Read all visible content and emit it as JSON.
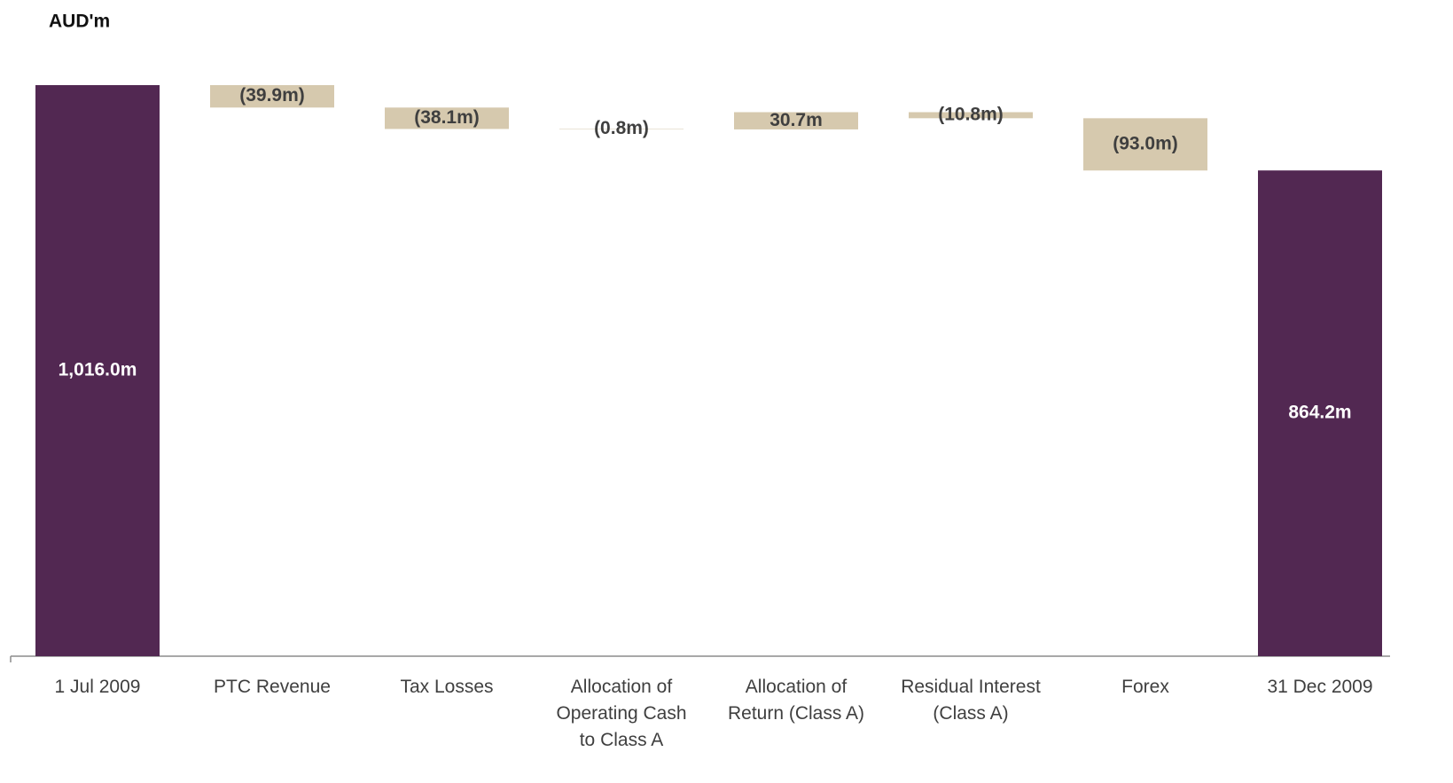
{
  "chart_data": {
    "type": "waterfall",
    "title": "AUD'm",
    "categories": [
      "1 Jul 2009",
      "PTC Revenue",
      "Tax Losses",
      "Allocation of\nOperating Cash\nto Class A",
      "Allocation of\nReturn (Class A)",
      "Residual Interest\n(Class A)",
      "Forex",
      "31 Dec 2009"
    ],
    "values": [
      1016.0,
      -39.9,
      -38.1,
      -0.8,
      30.7,
      -10.8,
      -93.0,
      864.2
    ],
    "value_labels": [
      "1,016.0m",
      "(39.9m)",
      "(38.1m)",
      "(0.8m)",
      "30.7m",
      "(10.8m)",
      "(93.0m)",
      "864.2m"
    ],
    "is_total": [
      true,
      false,
      false,
      false,
      false,
      false,
      false,
      true
    ],
    "total_color": "#522852",
    "delta_color": "#d6c9ae"
  }
}
